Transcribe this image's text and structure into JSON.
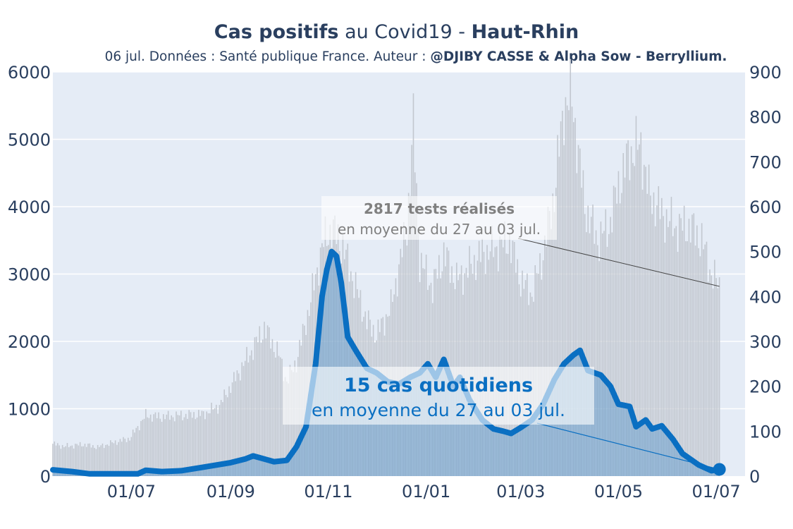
{
  "chart_data": {
    "type": "bar",
    "title": {
      "bold1": "Cas positifs",
      "mid": " au Covid19 - ",
      "bold2": "Haut-Rhin"
    },
    "subtitle": {
      "text": "06 jul. Données : Santé publique France. Auteur : ",
      "bold": "@DJIBY CASSE & Alpha Sow - Berryllium."
    },
    "x_tick_labels": [
      "01/07",
      "01/09",
      "01/11",
      "01/01",
      "01/03",
      "01/05",
      "01/07"
    ],
    "x_tick_dates": [
      "2020-07-01",
      "2020-09-01",
      "2020-11-01",
      "2021-01-01",
      "2021-03-01",
      "2021-05-01",
      "2021-07-01"
    ],
    "xlim": [
      "2020-05-13",
      "2021-07-19"
    ],
    "y_left": {
      "ylim": [
        0,
        6000
      ],
      "ticks": [
        0,
        1000,
        2000,
        3000,
        4000,
        5000,
        6000
      ],
      "series": "tests (grey bars)"
    },
    "y_right": {
      "ylim": [
        0,
        900
      ],
      "ticks": [
        0,
        100,
        200,
        300,
        400,
        500,
        600,
        700,
        800,
        900
      ],
      "series": "cas (blue)"
    },
    "tests_series": {
      "color": "#c2c7cf",
      "points": [
        [
          "2020-05-13",
          480
        ],
        [
          "2020-05-20",
          440
        ],
        [
          "2020-06-01",
          470
        ],
        [
          "2020-06-10",
          430
        ],
        [
          "2020-06-20",
          500
        ],
        [
          "2020-06-30",
          560
        ],
        [
          "2020-07-10",
          900
        ],
        [
          "2020-07-20",
          880
        ],
        [
          "2020-08-01",
          900
        ],
        [
          "2020-08-15",
          920
        ],
        [
          "2020-08-25",
          1050
        ],
        [
          "2020-09-05",
          1500
        ],
        [
          "2020-09-15",
          1900
        ],
        [
          "2020-09-22",
          2200
        ],
        [
          "2020-10-01",
          1800
        ],
        [
          "2020-10-06",
          1400
        ],
        [
          "2020-10-12",
          1700
        ],
        [
          "2020-10-20",
          2500
        ],
        [
          "2020-10-28",
          3400
        ],
        [
          "2020-11-03",
          3700
        ],
        [
          "2020-11-10",
          3400
        ],
        [
          "2020-11-18",
          2800
        ],
        [
          "2020-11-25",
          2300
        ],
        [
          "2020-12-01",
          2100
        ],
        [
          "2020-12-10",
          2500
        ],
        [
          "2020-12-20",
          3700
        ],
        [
          "2020-12-24",
          5200
        ],
        [
          "2020-12-28",
          3200
        ],
        [
          "2021-01-05",
          2800
        ],
        [
          "2021-01-12",
          3300
        ],
        [
          "2021-01-20",
          2900
        ],
        [
          "2021-01-28",
          3100
        ],
        [
          "2021-02-05",
          3300
        ],
        [
          "2021-02-15",
          3400
        ],
        [
          "2021-02-22",
          3500
        ],
        [
          "2021-03-01",
          2900
        ],
        [
          "2021-03-08",
          2700
        ],
        [
          "2021-03-15",
          3300
        ],
        [
          "2021-03-22",
          4200
        ],
        [
          "2021-03-28",
          5500
        ],
        [
          "2021-04-02",
          5600
        ],
        [
          "2021-04-10",
          4000
        ],
        [
          "2021-04-18",
          3500
        ],
        [
          "2021-04-25",
          3700
        ],
        [
          "2021-05-01",
          4300
        ],
        [
          "2021-05-08",
          4800
        ],
        [
          "2021-05-15",
          4900
        ],
        [
          "2021-05-20",
          4200
        ],
        [
          "2021-05-28",
          3900
        ],
        [
          "2021-06-05",
          3700
        ],
        [
          "2021-06-15",
          3700
        ],
        [
          "2021-06-22",
          3500
        ],
        [
          "2021-06-28",
          3000
        ],
        [
          "2021-07-03",
          2817
        ]
      ]
    },
    "cases_series": {
      "color": "#0a6fc2",
      "points": [
        [
          "2020-05-13",
          14
        ],
        [
          "2020-05-25",
          10
        ],
        [
          "2020-06-05",
          5
        ],
        [
          "2020-06-20",
          5
        ],
        [
          "2020-07-05",
          5
        ],
        [
          "2020-07-10",
          13
        ],
        [
          "2020-07-20",
          10
        ],
        [
          "2020-08-01",
          12
        ],
        [
          "2020-08-15",
          20
        ],
        [
          "2020-09-01",
          30
        ],
        [
          "2020-09-10",
          38
        ],
        [
          "2020-09-15",
          45
        ],
        [
          "2020-09-20",
          40
        ],
        [
          "2020-09-28",
          32
        ],
        [
          "2020-10-06",
          35
        ],
        [
          "2020-10-12",
          65
        ],
        [
          "2020-10-18",
          110
        ],
        [
          "2020-10-24",
          250
        ],
        [
          "2020-10-28",
          400
        ],
        [
          "2020-10-31",
          460
        ],
        [
          "2020-11-03",
          500
        ],
        [
          "2020-11-06",
          490
        ],
        [
          "2020-11-09",
          430
        ],
        [
          "2020-11-13",
          310
        ],
        [
          "2020-11-18",
          280
        ],
        [
          "2020-11-25",
          240
        ],
        [
          "2020-12-01",
          230
        ],
        [
          "2020-12-08",
          210
        ],
        [
          "2020-12-15",
          205
        ],
        [
          "2020-12-22",
          220
        ],
        [
          "2020-12-28",
          230
        ],
        [
          "2021-01-02",
          250
        ],
        [
          "2021-01-07",
          220
        ],
        [
          "2021-01-12",
          260
        ],
        [
          "2021-01-18",
          200
        ],
        [
          "2021-01-22",
          220
        ],
        [
          "2021-01-28",
          170
        ],
        [
          "2021-02-05",
          125
        ],
        [
          "2021-02-12",
          105
        ],
        [
          "2021-02-18",
          100
        ],
        [
          "2021-02-23",
          95
        ],
        [
          "2021-03-01",
          108
        ],
        [
          "2021-03-08",
          125
        ],
        [
          "2021-03-15",
          160
        ],
        [
          "2021-03-22",
          215
        ],
        [
          "2021-03-28",
          250
        ],
        [
          "2021-04-03",
          270
        ],
        [
          "2021-04-07",
          280
        ],
        [
          "2021-04-12",
          235
        ],
        [
          "2021-04-20",
          225
        ],
        [
          "2021-04-26",
          200
        ],
        [
          "2021-05-01",
          160
        ],
        [
          "2021-05-08",
          155
        ],
        [
          "2021-05-12",
          110
        ],
        [
          "2021-05-18",
          125
        ],
        [
          "2021-05-22",
          105
        ],
        [
          "2021-05-28",
          112
        ],
        [
          "2021-06-04",
          82
        ],
        [
          "2021-06-10",
          50
        ],
        [
          "2021-06-20",
          25
        ],
        [
          "2021-06-28",
          12
        ],
        [
          "2021-07-03",
          15
        ]
      ]
    },
    "annotations": {
      "tests": {
        "bold": "2817 tests réalisés",
        "text": "en moyenne du 27 au 03 jul.",
        "color": "#808080"
      },
      "cases": {
        "bold": "15 cas quotidiens",
        "text": "en moyenne du 27 au 03 jul.",
        "color": "#0a6fc2"
      }
    },
    "colors": {
      "plot_bg": "#e5ecf6",
      "axis_text": "#2a3f5f",
      "grid": "#ffffff"
    },
    "grid": true
  }
}
